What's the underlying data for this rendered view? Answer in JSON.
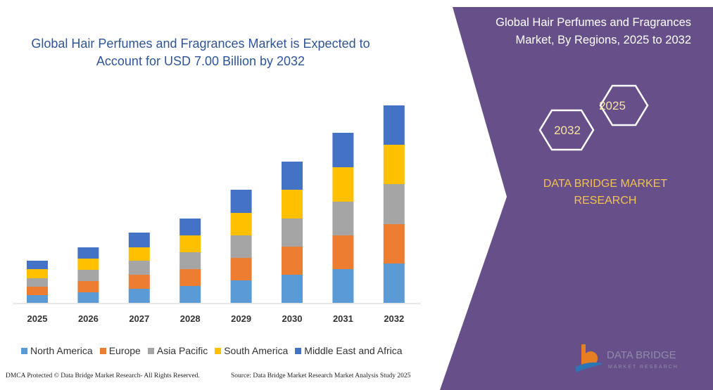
{
  "chart_data": {
    "type": "stacked_bar",
    "title": "Global Hair Perfumes and Fragrances Market is Expected to Account for USD 7.00 Billion by 2032",
    "categories": [
      "2025",
      "2026",
      "2027",
      "2028",
      "2029",
      "2030",
      "2031",
      "2032"
    ],
    "series": [
      {
        "name": "North America",
        "color": "#5b9bd5",
        "values": [
          11,
          15,
          20,
          24,
          32,
          40,
          48,
          56
        ]
      },
      {
        "name": "Europe",
        "color": "#ed7d31",
        "values": [
          12,
          16,
          20,
          24,
          32,
          40,
          48,
          56
        ]
      },
      {
        "name": "Asia Pacific",
        "color": "#a5a5a5",
        "values": [
          12,
          16,
          20,
          24,
          32,
          40,
          48,
          57
        ]
      },
      {
        "name": "South America",
        "color": "#ffc000",
        "values": [
          13,
          16,
          19,
          24,
          32,
          41,
          49,
          56
        ]
      },
      {
        "name": "Middle East and Africa",
        "color": "#4472c4",
        "values": [
          12,
          16,
          21,
          24,
          33,
          40,
          49,
          56
        ]
      }
    ]
  },
  "panel": {
    "title": "Global Hair Perfumes and Fragrances Market, By Regions, 2025 to 2032",
    "hex_top": "2025",
    "hex_bottom": "2032",
    "brand": "DATA BRIDGE MARKET RESEARCH"
  },
  "logo": {
    "name": "DATA BRIDGE",
    "tagline": "MARKET RESEARCH"
  },
  "footer": {
    "dmca": "DMCA Protected © Data Bridge Market Research- All Rights Reserved.",
    "source": "Source: Data Bridge Market Research Market Analysis Study 2025"
  }
}
